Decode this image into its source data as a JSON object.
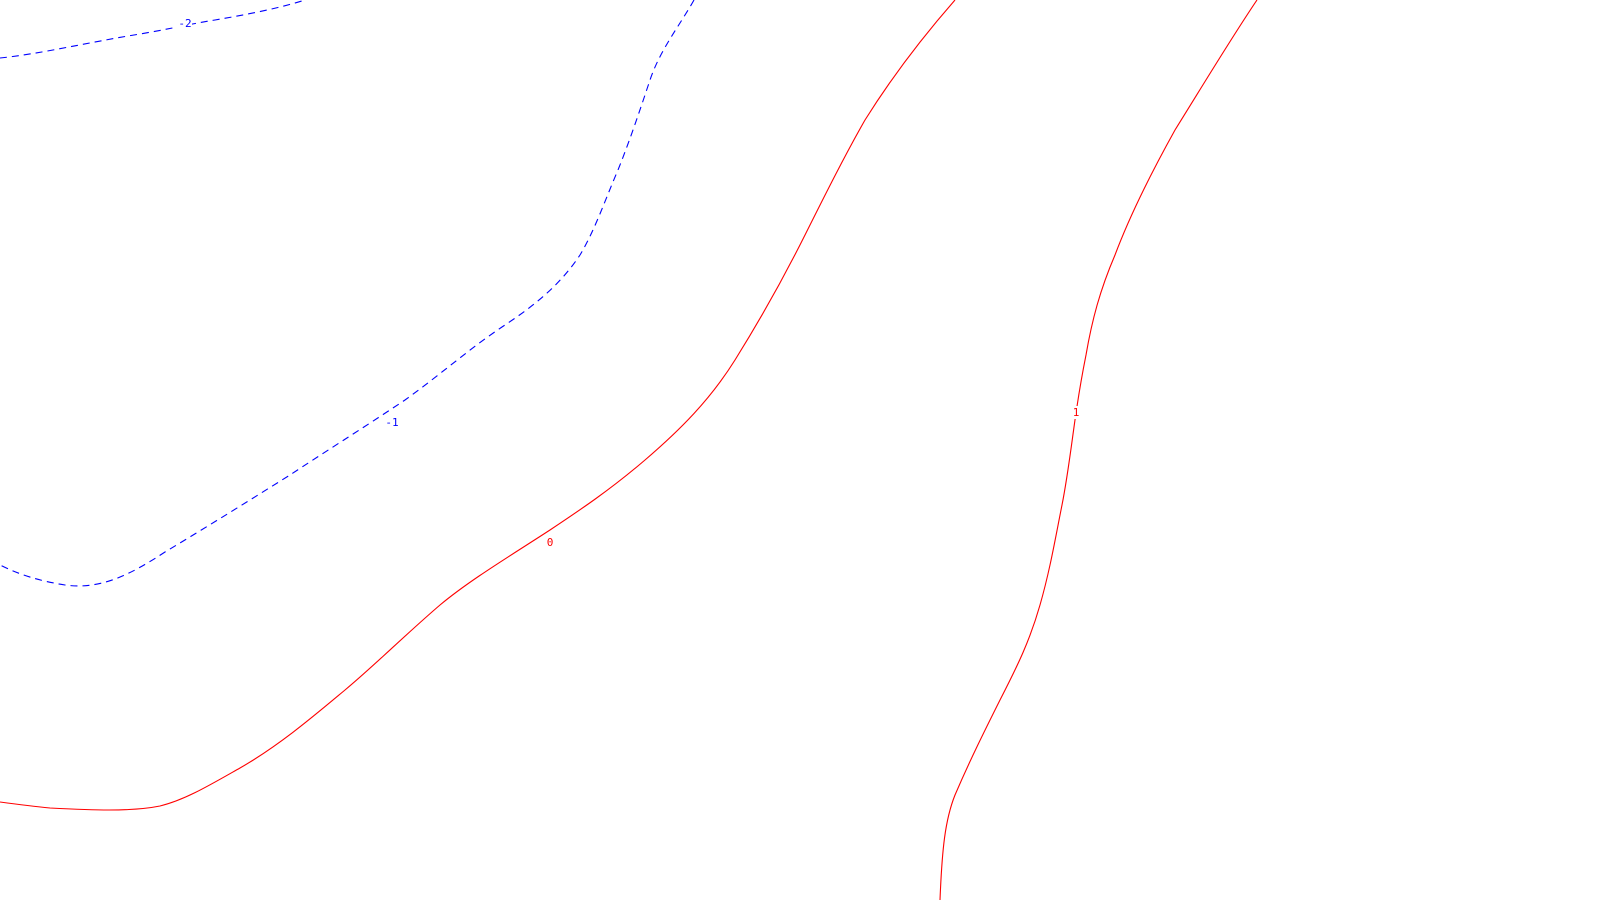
{
  "contours": [
    {
      "id": "contour-minus2",
      "level": "-2",
      "label": "-2",
      "style": "dashed",
      "color": "#0000ff"
    },
    {
      "id": "contour-minus1",
      "level": "-1",
      "label": "-1",
      "style": "dashed",
      "color": "#0000ff"
    },
    {
      "id": "contour-0",
      "level": "0",
      "label": "0",
      "style": "solid",
      "color": "#ff0000"
    },
    {
      "id": "contour-1",
      "level": "1",
      "label": "1",
      "style": "solid",
      "color": "#ff0000"
    }
  ],
  "colors": {
    "negative": "#0000ff",
    "positive": "#ff0000",
    "background": "#ffffff"
  }
}
